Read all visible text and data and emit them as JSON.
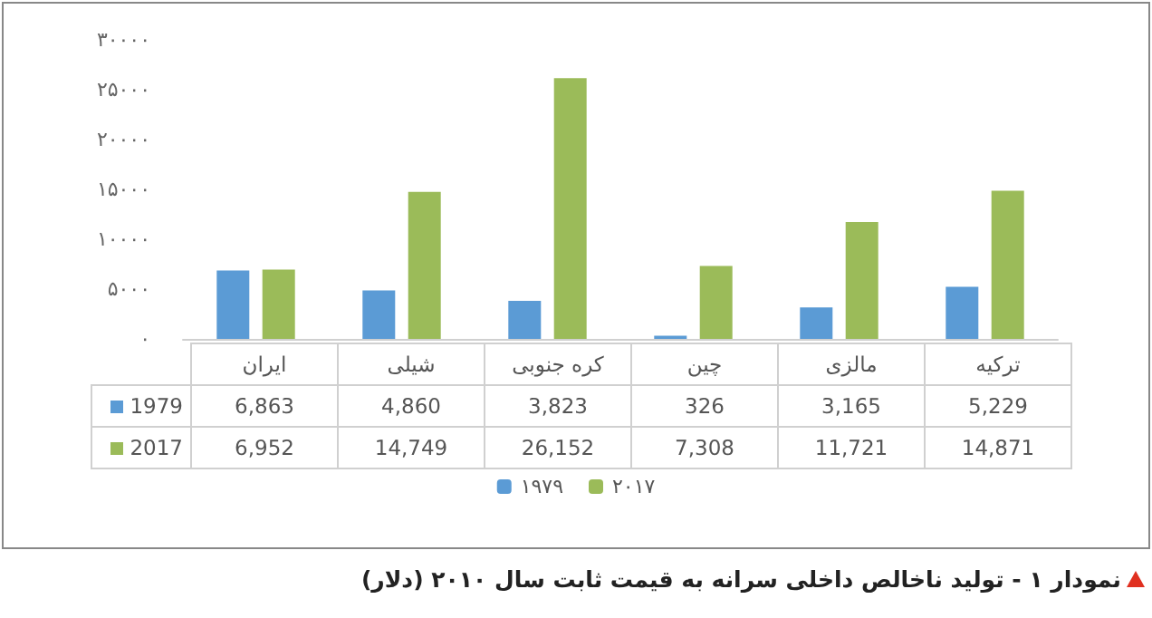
{
  "chart_data": {
    "type": "bar",
    "title": "نمودار ۱ - تولید ناخالص داخلی سرانه به قیمت ثابت سال ۲۰۱۰ (دلار)",
    "categories": [
      "ایران",
      "شیلی",
      "کره جنوبی",
      "چین",
      "مالزی",
      "ترکیه"
    ],
    "series": [
      {
        "name": "۱۹۷۹",
        "color": "#5b9bd5",
        "values": [
          6863,
          4860,
          3823,
          326,
          3165,
          5229
        ],
        "value_labels": [
          "6,863",
          "4,860",
          "3,823",
          "326",
          "3,165",
          "5,229"
        ]
      },
      {
        "name": "۲۰۱۷",
        "color": "#9bbb59",
        "values": [
          6952,
          14749,
          26152,
          7308,
          11721,
          14871
        ],
        "value_labels": [
          "6,952",
          "14,749",
          "26,152",
          "7,308",
          "11,721",
          "14,871"
        ]
      }
    ],
    "annotations": [
      "1979",
      "2017"
    ],
    "ylim": [
      0,
      30000
    ],
    "yticks": [
      {
        "value": 0,
        "label": "۰"
      },
      {
        "value": 5000,
        "label": "۵۰۰۰"
      },
      {
        "value": 10000,
        "label": "۱۰۰۰۰"
      },
      {
        "value": 15000,
        "label": "۱۵۰۰۰"
      },
      {
        "value": 20000,
        "label": "۲۰۰۰۰"
      },
      {
        "value": 25000,
        "label": "۲۵۰۰۰"
      },
      {
        "value": 30000,
        "label": "۳۰۰۰۰"
      }
    ],
    "grid": false,
    "legend": "bottom"
  }
}
